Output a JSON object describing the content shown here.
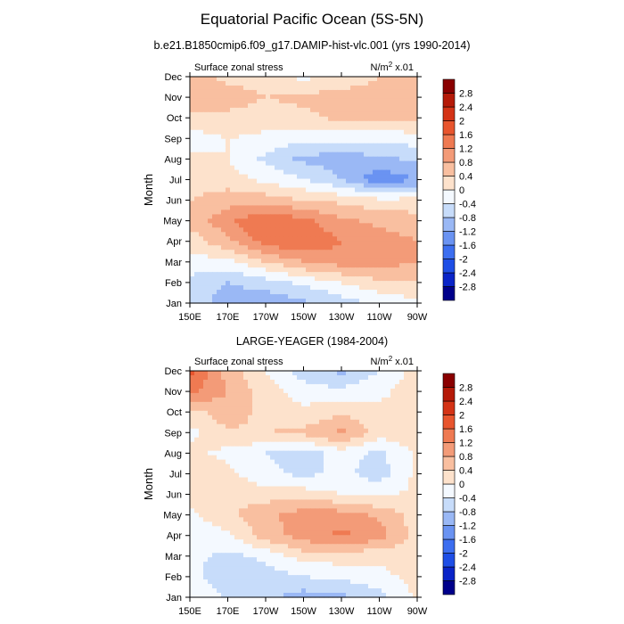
{
  "figure": {
    "title": "Equatorial Pacific Ocean (5S-5N)"
  },
  "colorbar": {
    "colors": [
      "#00008b",
      "#0a24c8",
      "#1e4ee6",
      "#3c6ef0",
      "#6a93f2",
      "#9ab8f5",
      "#c7dcfa",
      "#f4f9ff",
      "#fde2cc",
      "#f9bfa0",
      "#f39b78",
      "#ef7a52",
      "#e8552e",
      "#d43316",
      "#b51a08",
      "#8a0000"
    ],
    "labels": [
      "-2.8",
      "-2.4",
      "-2",
      "-1.6",
      "-1.2",
      "-0.8",
      "-0.4",
      "0",
      "0.4",
      "0.8",
      "1.2",
      "1.6",
      "2",
      "2.4",
      "2.8"
    ]
  },
  "chart_data": [
    {
      "type": "heatmap",
      "subtitle": "b.e21.B1850cmip6.f09_g17.DAMIP-hist-vlc.001 (yrs 1990-2014)",
      "left_label": "Surface zonal stress",
      "units_label": "N/m",
      "units_sup": "2",
      "units_suffix": " x.01",
      "ylabel": "Month",
      "x": [
        "150E",
        "170E",
        "170W",
        "150W",
        "130W",
        "110W",
        "90W"
      ],
      "y": [
        "Jan",
        "Feb",
        "Mar",
        "Apr",
        "May",
        "Jun",
        "Jul",
        "Aug",
        "Sep",
        "Oct",
        "Nov",
        "Dec"
      ],
      "levels": [
        -2.8,
        -2.4,
        -2.0,
        -1.6,
        -1.2,
        -0.8,
        -0.4,
        0,
        0.4,
        0.8,
        1.2,
        1.6,
        2.0,
        2.4,
        2.8
      ],
      "z": [
        [
          -0.6,
          -1.0,
          -1.1,
          -0.9,
          -0.6,
          -0.3,
          -0.1
        ],
        [
          -0.5,
          -0.8,
          -0.6,
          -0.3,
          0.0,
          0.3,
          0.4
        ],
        [
          -0.2,
          -0.1,
          0.4,
          0.8,
          1.0,
          1.0,
          0.8
        ],
        [
          0.2,
          0.7,
          1.4,
          1.6,
          1.2,
          1.0,
          0.8
        ],
        [
          0.5,
          1.1,
          1.6,
          1.3,
          0.9,
          0.7,
          0.6
        ],
        [
          0.4,
          0.6,
          0.6,
          0.4,
          0.3,
          0.1,
          0.1
        ],
        [
          0.2,
          0.2,
          -0.1,
          -0.4,
          -0.8,
          -1.5,
          -1.2
        ],
        [
          0.1,
          0.0,
          -0.5,
          -0.9,
          -1.0,
          -0.9,
          -0.7
        ],
        [
          -0.2,
          0.0,
          -0.1,
          -0.3,
          -0.3,
          -0.3,
          -0.2
        ],
        [
          0.3,
          0.3,
          0.2,
          0.3,
          0.5,
          0.6,
          0.5
        ],
        [
          0.8,
          0.6,
          0.4,
          0.5,
          0.6,
          0.6,
          0.6
        ],
        [
          0.5,
          0.3,
          0.2,
          -0.1,
          0.1,
          0.4,
          0.5
        ]
      ]
    },
    {
      "type": "heatmap",
      "subtitle": "LARGE-YEAGER (1984-2004)",
      "left_label": "Surface zonal stress",
      "units_label": "N/m",
      "units_sup": "2",
      "units_suffix": " x.01",
      "ylabel": "Month",
      "x": [
        "150E",
        "170E",
        "170W",
        "150W",
        "130W",
        "110W",
        "90W"
      ],
      "y": [
        "Jan",
        "Feb",
        "Mar",
        "Apr",
        "May",
        "Jun",
        "Jul",
        "Aug",
        "Sep",
        "Oct",
        "Nov",
        "Dec"
      ],
      "levels": [
        -2.8,
        -2.4,
        -2.0,
        -1.6,
        -1.2,
        -0.8,
        -0.4,
        0,
        0.4,
        0.8,
        1.2,
        1.6,
        2.0,
        2.4,
        2.8
      ],
      "z": [
        [
          -0.1,
          -0.4,
          -0.7,
          -1.0,
          -0.9,
          -0.6,
          0.1
        ],
        [
          -0.2,
          -0.8,
          -0.6,
          -0.4,
          -0.3,
          -0.1,
          0.1
        ],
        [
          -0.3,
          -0.5,
          -0.3,
          0.2,
          0.2,
          0.1,
          0.2
        ],
        [
          -0.2,
          -0.1,
          0.6,
          1.0,
          1.3,
          1.0,
          0.2
        ],
        [
          -0.1,
          0.3,
          0.7,
          1.0,
          1.0,
          0.7,
          0.2
        ],
        [
          0.1,
          0.3,
          0.2,
          0.2,
          0.0,
          -0.1,
          0.1
        ],
        [
          0.2,
          0.1,
          -0.3,
          -0.5,
          -0.3,
          -0.6,
          0.1
        ],
        [
          0.1,
          -0.1,
          -0.4,
          -0.6,
          -0.2,
          -0.5,
          0.1
        ],
        [
          -0.1,
          0.3,
          0.4,
          0.5,
          0.9,
          0.2,
          0.2
        ],
        [
          0.2,
          0.7,
          0.2,
          0.1,
          0.3,
          0.1,
          0.2
        ],
        [
          1.3,
          0.8,
          0.2,
          -0.2,
          -0.3,
          -0.1,
          0.2
        ],
        [
          1.8,
          0.6,
          0.0,
          -0.6,
          -0.9,
          -0.4,
          0.2
        ]
      ]
    }
  ]
}
